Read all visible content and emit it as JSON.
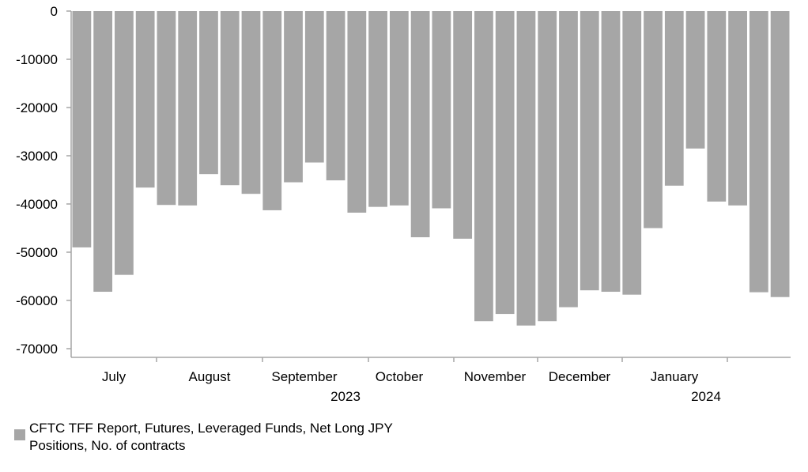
{
  "chart_data": {
    "type": "bar",
    "title": "",
    "xlabel": "",
    "ylabel": "",
    "ylim": [
      -70000,
      0
    ],
    "y_ticks": [
      0,
      -10000,
      -20000,
      -30000,
      -40000,
      -50000,
      -60000,
      -70000
    ],
    "bar_color": "#a6a6a6",
    "axis_color": "#a6a6a6",
    "month_labels": [
      "July",
      "August",
      "September",
      "October",
      "November",
      "December",
      "January"
    ],
    "year_labels": [
      "2023",
      "2024"
    ],
    "legend": {
      "position": "bottom-left",
      "label": "CFTC TFF Report, Futures, Leveraged Funds, Net Long JPY Positions, No. of contracts"
    },
    "series": [
      {
        "name": "CFTC TFF Report, Futures, Leveraged Funds, Net Long JPY Positions, No. of contracts",
        "values": [
          -49000,
          -58200,
          -54700,
          -36600,
          -40200,
          -40300,
          -33800,
          -36100,
          -37900,
          -41300,
          -35500,
          -31400,
          -35100,
          -41800,
          -40600,
          -40300,
          -46900,
          -40900,
          -47200,
          -64300,
          -62800,
          -65200,
          -64300,
          -61400,
          -57900,
          -58200,
          -58800,
          -45000,
          -36200,
          -28500,
          -39500,
          -40300,
          -58300,
          -59300
        ]
      }
    ]
  }
}
